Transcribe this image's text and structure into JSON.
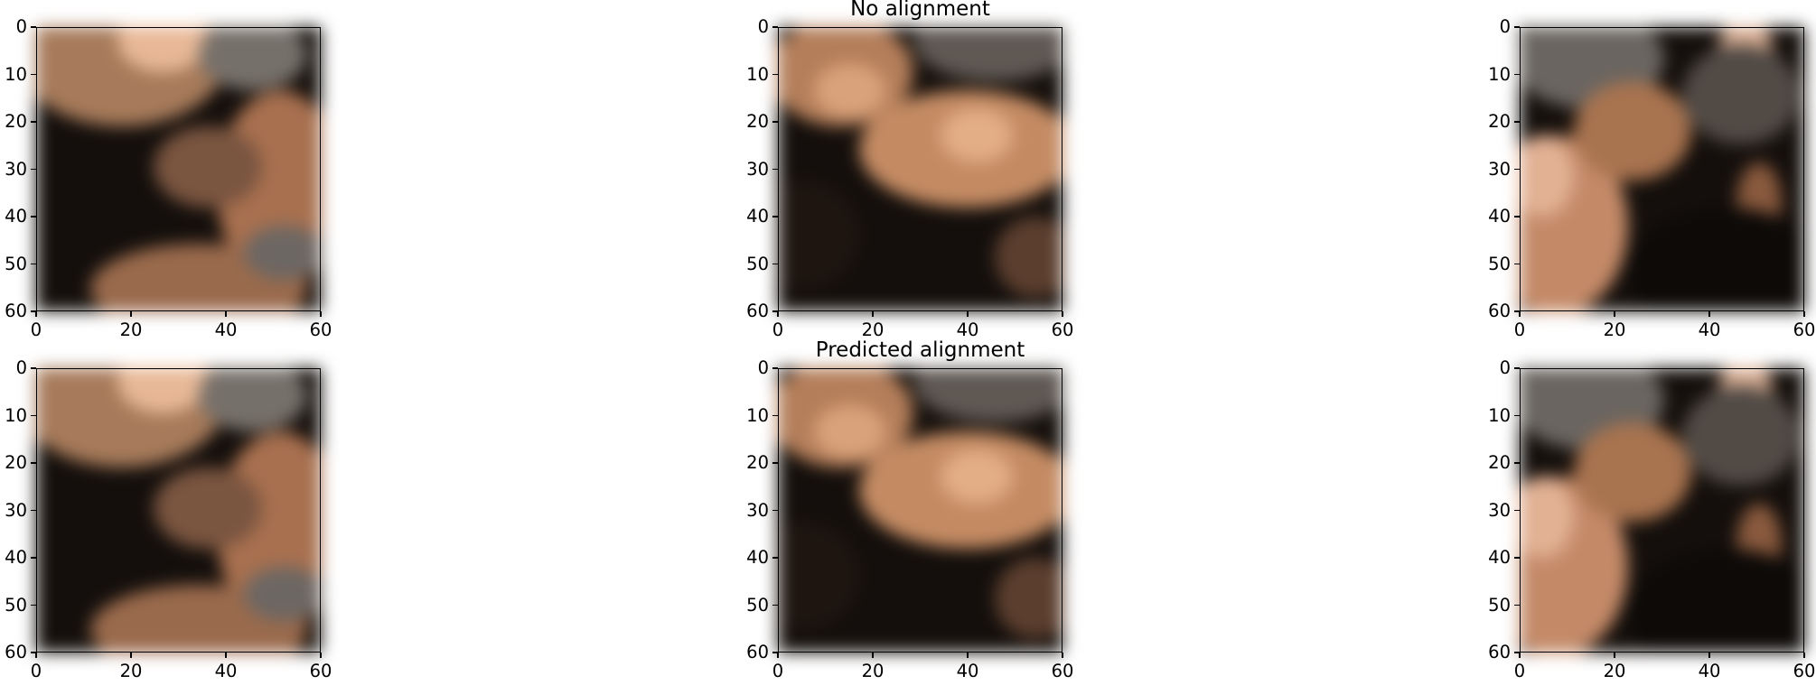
{
  "chart_data": [
    {
      "type": "image",
      "row": 0,
      "col": 0,
      "title": "",
      "xlim": [
        0,
        60
      ],
      "ylim": [
        60,
        0
      ],
      "xticks": [
        "0",
        "20",
        "40",
        "60"
      ],
      "yticks": [
        "0",
        "10",
        "20",
        "30",
        "40",
        "50",
        "60"
      ]
    },
    {
      "type": "image",
      "row": 0,
      "col": 1,
      "title": "No alignment",
      "xlim": [
        0,
        60
      ],
      "ylim": [
        60,
        0
      ],
      "xticks": [
        "0",
        "20",
        "40",
        "60"
      ],
      "yticks": [
        "0",
        "10",
        "20",
        "30",
        "40",
        "50",
        "60"
      ]
    },
    {
      "type": "image",
      "row": 0,
      "col": 2,
      "title": "",
      "xlim": [
        0,
        60
      ],
      "ylim": [
        60,
        0
      ],
      "xticks": [
        "0",
        "20",
        "40",
        "60"
      ],
      "yticks": [
        "0",
        "10",
        "20",
        "30",
        "40",
        "50",
        "60"
      ]
    },
    {
      "type": "image",
      "row": 1,
      "col": 0,
      "title": "",
      "xlim": [
        0,
        60
      ],
      "ylim": [
        60,
        0
      ],
      "xticks": [
        "0",
        "20",
        "40",
        "60"
      ],
      "yticks": [
        "0",
        "10",
        "20",
        "30",
        "40",
        "50",
        "60"
      ]
    },
    {
      "type": "image",
      "row": 1,
      "col": 1,
      "title": "Predicted alignment",
      "xlim": [
        0,
        60
      ],
      "ylim": [
        60,
        0
      ],
      "xticks": [
        "0",
        "20",
        "40",
        "60"
      ],
      "yticks": [
        "0",
        "10",
        "20",
        "30",
        "40",
        "50",
        "60"
      ]
    },
    {
      "type": "image",
      "row": 1,
      "col": 2,
      "title": "",
      "xlim": [
        0,
        60
      ],
      "ylim": [
        60,
        0
      ],
      "xticks": [
        "0",
        "20",
        "40",
        "60"
      ],
      "yticks": [
        "0",
        "10",
        "20",
        "30",
        "40",
        "50",
        "60"
      ]
    }
  ],
  "colors": {
    "dark": "#140f0c",
    "skin": "#c98c66",
    "light_skin": "#e8b896",
    "gray": "#6a6560"
  }
}
